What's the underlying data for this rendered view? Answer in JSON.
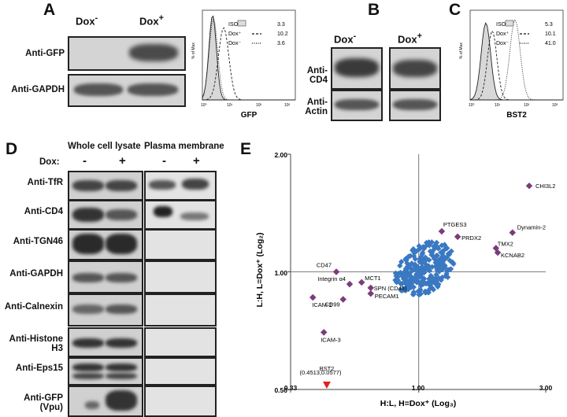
{
  "panels": {
    "A": {
      "letter": "A",
      "lanes": [
        "Dox",
        "Dox"
      ],
      "lane_sup": [
        "-",
        "+"
      ],
      "blots": [
        "Anti-GFP",
        "Anti-GAPDH"
      ]
    },
    "B": {
      "letter": "B",
      "lanes": [
        "Dox",
        "Dox"
      ],
      "lane_sup": [
        "-",
        "+"
      ],
      "blots": [
        "Anti-CD4",
        "Anti-Actin"
      ]
    },
    "C": {
      "letter": "C"
    },
    "D": {
      "letter": "D",
      "col_headers": [
        "Whole cell lysate",
        "Plasma membrane"
      ],
      "dox_label": "Dox:",
      "dox_signs": [
        "-",
        "+",
        "-",
        "+"
      ],
      "blots": [
        "Anti-TfR",
        "Anti-CD4",
        "Anti-TGN46",
        "Anti-GAPDH",
        "Anti-Calnexin",
        "Anti-Histone H3",
        "Anti-Eps15",
        "Anti-GFP (Vpu)"
      ]
    },
    "E": {
      "letter": "E"
    }
  },
  "chart_data": [
    {
      "type": "area",
      "panel": "A",
      "xlabel": "GFP",
      "ylabel": "% of Max",
      "xticks": [
        "10⁰",
        "10¹",
        "10²",
        "10³"
      ],
      "legend": [
        {
          "name": "ISO",
          "value": "3.3"
        },
        {
          "name": "Dox⁺",
          "value": "10.2"
        },
        {
          "name": "Dox⁻",
          "value": "3.6"
        }
      ]
    },
    {
      "type": "area",
      "panel": "C",
      "xlabel": "BST2",
      "ylabel": "% of Max",
      "xticks": [
        "10⁰",
        "10¹",
        "10²",
        "10³"
      ],
      "legend": [
        {
          "name": "ISO",
          "value": "5.3"
        },
        {
          "name": "Dox⁺",
          "value": "10.1"
        },
        {
          "name": "Dox⁻",
          "value": "41.0"
        }
      ]
    },
    {
      "type": "scatter",
      "panel": "E",
      "xlabel": "H:L, H=Dox⁺ (Log₃)",
      "ylabel": "L:H, L=Dox⁺ (Log₂)",
      "xlim": [
        0.33,
        3.0
      ],
      "ylim": [
        0.5,
        2.0
      ],
      "xticks": [
        "0.33",
        "1.00",
        "3.00"
      ],
      "yticks": [
        "0.50",
        "1.00",
        "2.00"
      ],
      "xscale": "log",
      "yscale": "log",
      "labeled_points": [
        {
          "label": "CHI3L2",
          "x": 2.6,
          "y": 1.66
        },
        {
          "label": "PTGES3",
          "x": 1.22,
          "y": 1.27
        },
        {
          "label": "Dynamin-2",
          "x": 2.25,
          "y": 1.26
        },
        {
          "label": "PRDX2",
          "x": 1.4,
          "y": 1.23
        },
        {
          "label": "TMX2",
          "x": 1.95,
          "y": 1.15
        },
        {
          "label": "KCNAB2",
          "x": 1.98,
          "y": 1.12
        },
        {
          "label": "CD47",
          "x": 0.49,
          "y": 1.0
        },
        {
          "label": "Integrin α4",
          "x": 0.55,
          "y": 0.93
        },
        {
          "label": "MCT1",
          "x": 0.61,
          "y": 0.94
        },
        {
          "label": "SPN (CD43)",
          "x": 0.66,
          "y": 0.91
        },
        {
          "label": "PECAM1",
          "x": 0.66,
          "y": 0.88
        },
        {
          "label": "ICAM-2",
          "x": 0.4,
          "y": 0.86
        },
        {
          "label": "CD99",
          "x": 0.52,
          "y": 0.85
        },
        {
          "label": "ICAM-3",
          "x": 0.44,
          "y": 0.7
        },
        {
          "label": "BST2",
          "x": 0.4513,
          "y": 0.5,
          "marker": "triangle"
        }
      ],
      "bst2_note": "(0.4513,0.0577)",
      "cluster": {
        "name": "",
        "center_x": 1.05,
        "center_y": 1.02
      }
    }
  ]
}
